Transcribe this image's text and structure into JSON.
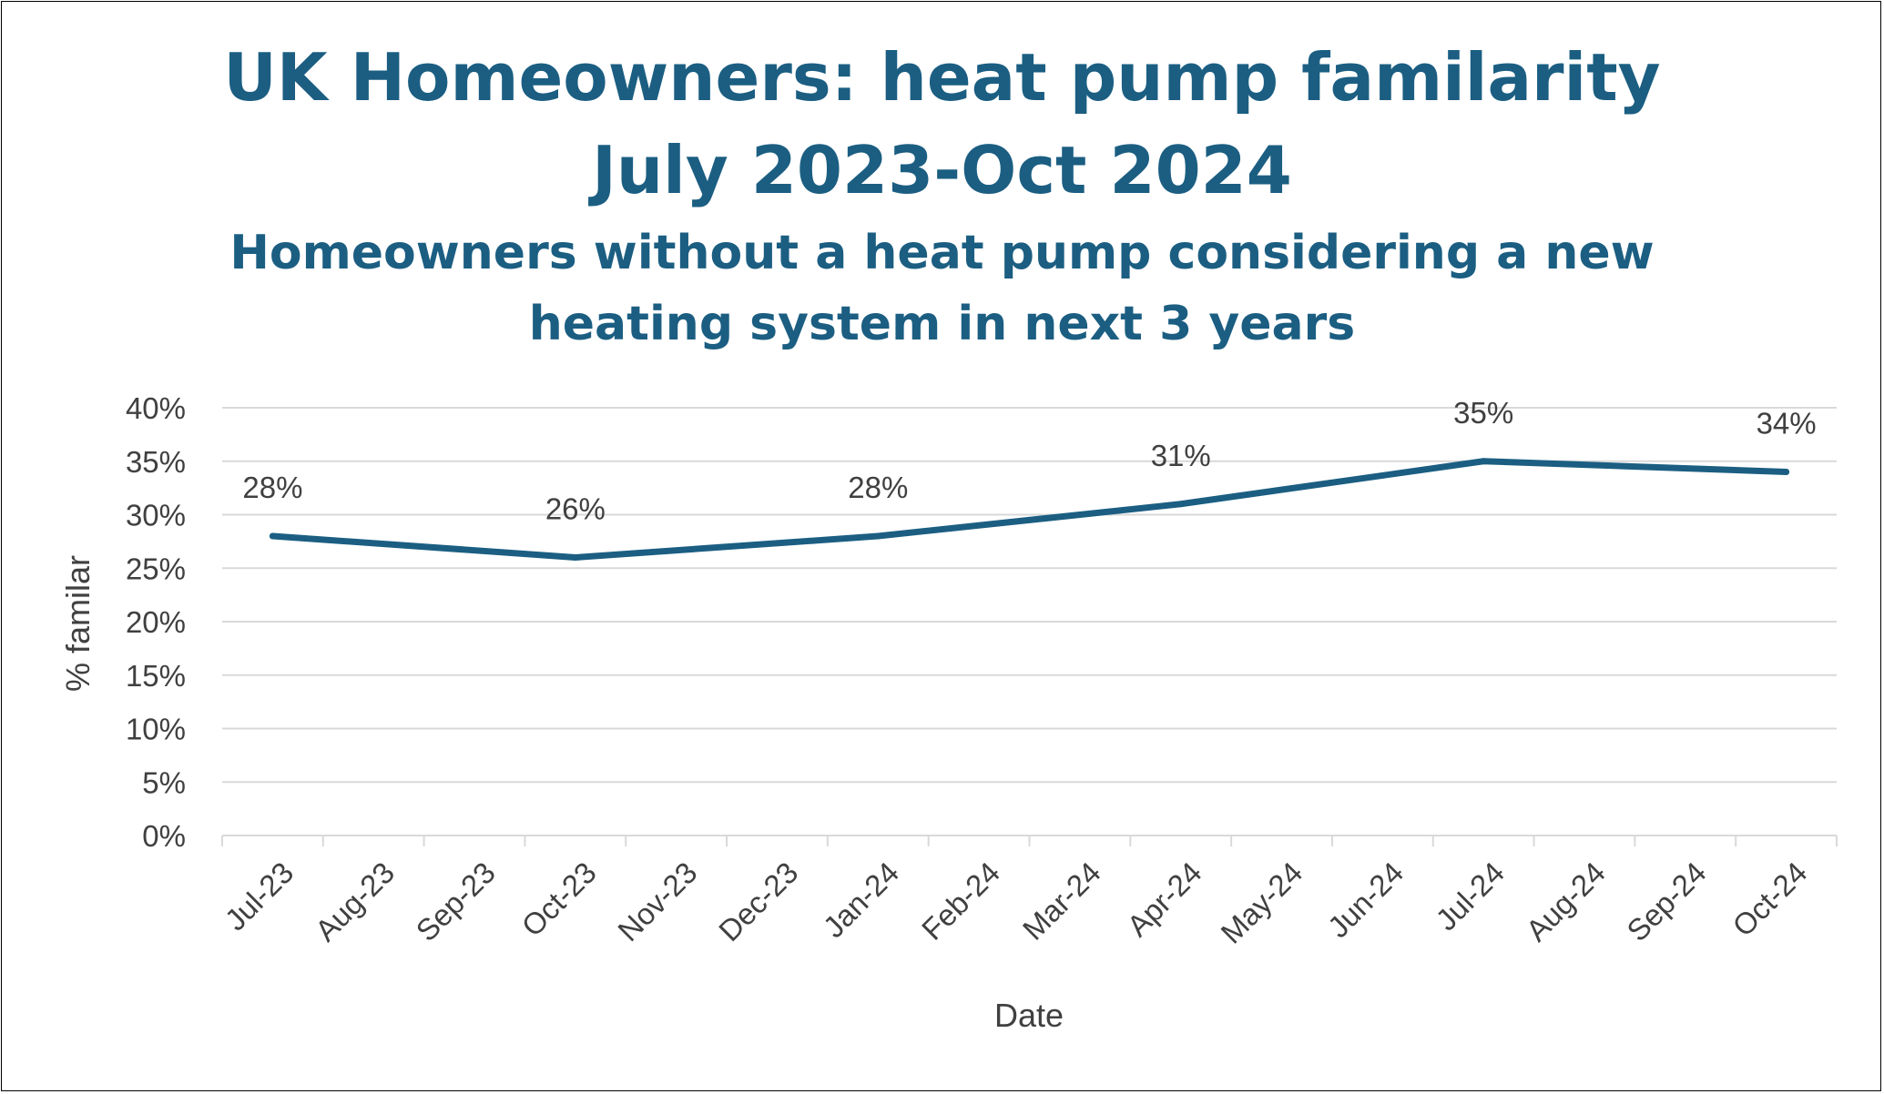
{
  "title_lines": [
    "UK Homeowners: heat pump familarity",
    "July 2023-Oct 2024"
  ],
  "subtitle_lines": [
    "Homeowners without a heat pump considering a new",
    "heating system in next 3 years"
  ],
  "colors": {
    "title": "#1b5e82",
    "line": "#1b5e82",
    "grid": "#d9d9d9",
    "text": "#404040"
  },
  "chart_data": {
    "type": "line",
    "categories": [
      "Jul-23",
      "Aug-23",
      "Sep-23",
      "Oct-23",
      "Nov-23",
      "Dec-23",
      "Jan-24",
      "Feb-24",
      "Mar-24",
      "Apr-24",
      "May-24",
      "Jun-24",
      "Jul-24",
      "Aug-24",
      "Sep-24",
      "Oct-24"
    ],
    "series": [
      {
        "points": [
          {
            "x": "Jul-23",
            "y": 28,
            "label": "28%"
          },
          {
            "x": "Oct-23",
            "y": 26,
            "label": "26%"
          },
          {
            "x": "Jan-24",
            "y": 28,
            "label": "28%"
          },
          {
            "x": "Apr-24",
            "y": 31,
            "label": "31%"
          },
          {
            "x": "Jul-24",
            "y": 35,
            "label": "35%"
          },
          {
            "x": "Oct-24",
            "y": 34,
            "label": "34%"
          }
        ]
      }
    ],
    "yticks": [
      "0%",
      "5%",
      "10%",
      "15%",
      "20%",
      "25%",
      "30%",
      "35%",
      "40%"
    ],
    "ylim": [
      0,
      40
    ],
    "ylabel": "% familar",
    "xlabel": "Date",
    "grid": true,
    "legend": "none"
  }
}
